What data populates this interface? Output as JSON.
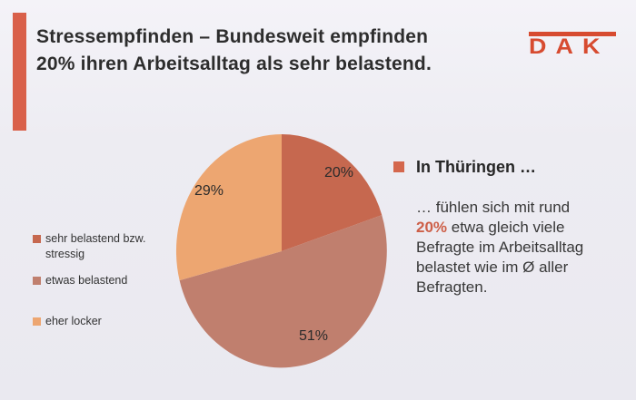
{
  "header": {
    "title_line1": "Stressempfinden – Bundesweit empfinden",
    "title_line2": "20% ihren Arbeitsalltag als sehr belastend.",
    "logo_text": "DAK"
  },
  "chart_data": {
    "type": "pie",
    "title": "",
    "categories": [
      "sehr belastend bzw. stressig",
      "etwas belastend",
      "eher locker"
    ],
    "values": [
      20,
      51,
      29
    ],
    "labels": [
      "20%",
      "51%",
      "29%"
    ],
    "colors": [
      "#c6684f",
      "#c07f6e",
      "#eda671"
    ],
    "start_angle_deg": 0,
    "direction": "clockwise",
    "legend_position": "left"
  },
  "legend": {
    "items": [
      {
        "label": "sehr belastend bzw. stressig"
      },
      {
        "label": "etwas belastend"
      },
      {
        "label": "eher locker"
      }
    ]
  },
  "note": {
    "heading": "In Thüringen …",
    "body_intro": "… fühlen sich mit rund",
    "body_highlight": "20%",
    "body_rest": " etwa gleich viele Befragte im Arbeitsalltag belastet wie im Ø aller Befragten."
  },
  "colors": {
    "background": "#edecf2",
    "accent_bar": "#d9604a",
    "logo": "#d74b30",
    "note_bullet": "#d4674d",
    "highlight_text": "#cd5f48",
    "title_text": "#2d2d2d"
  }
}
